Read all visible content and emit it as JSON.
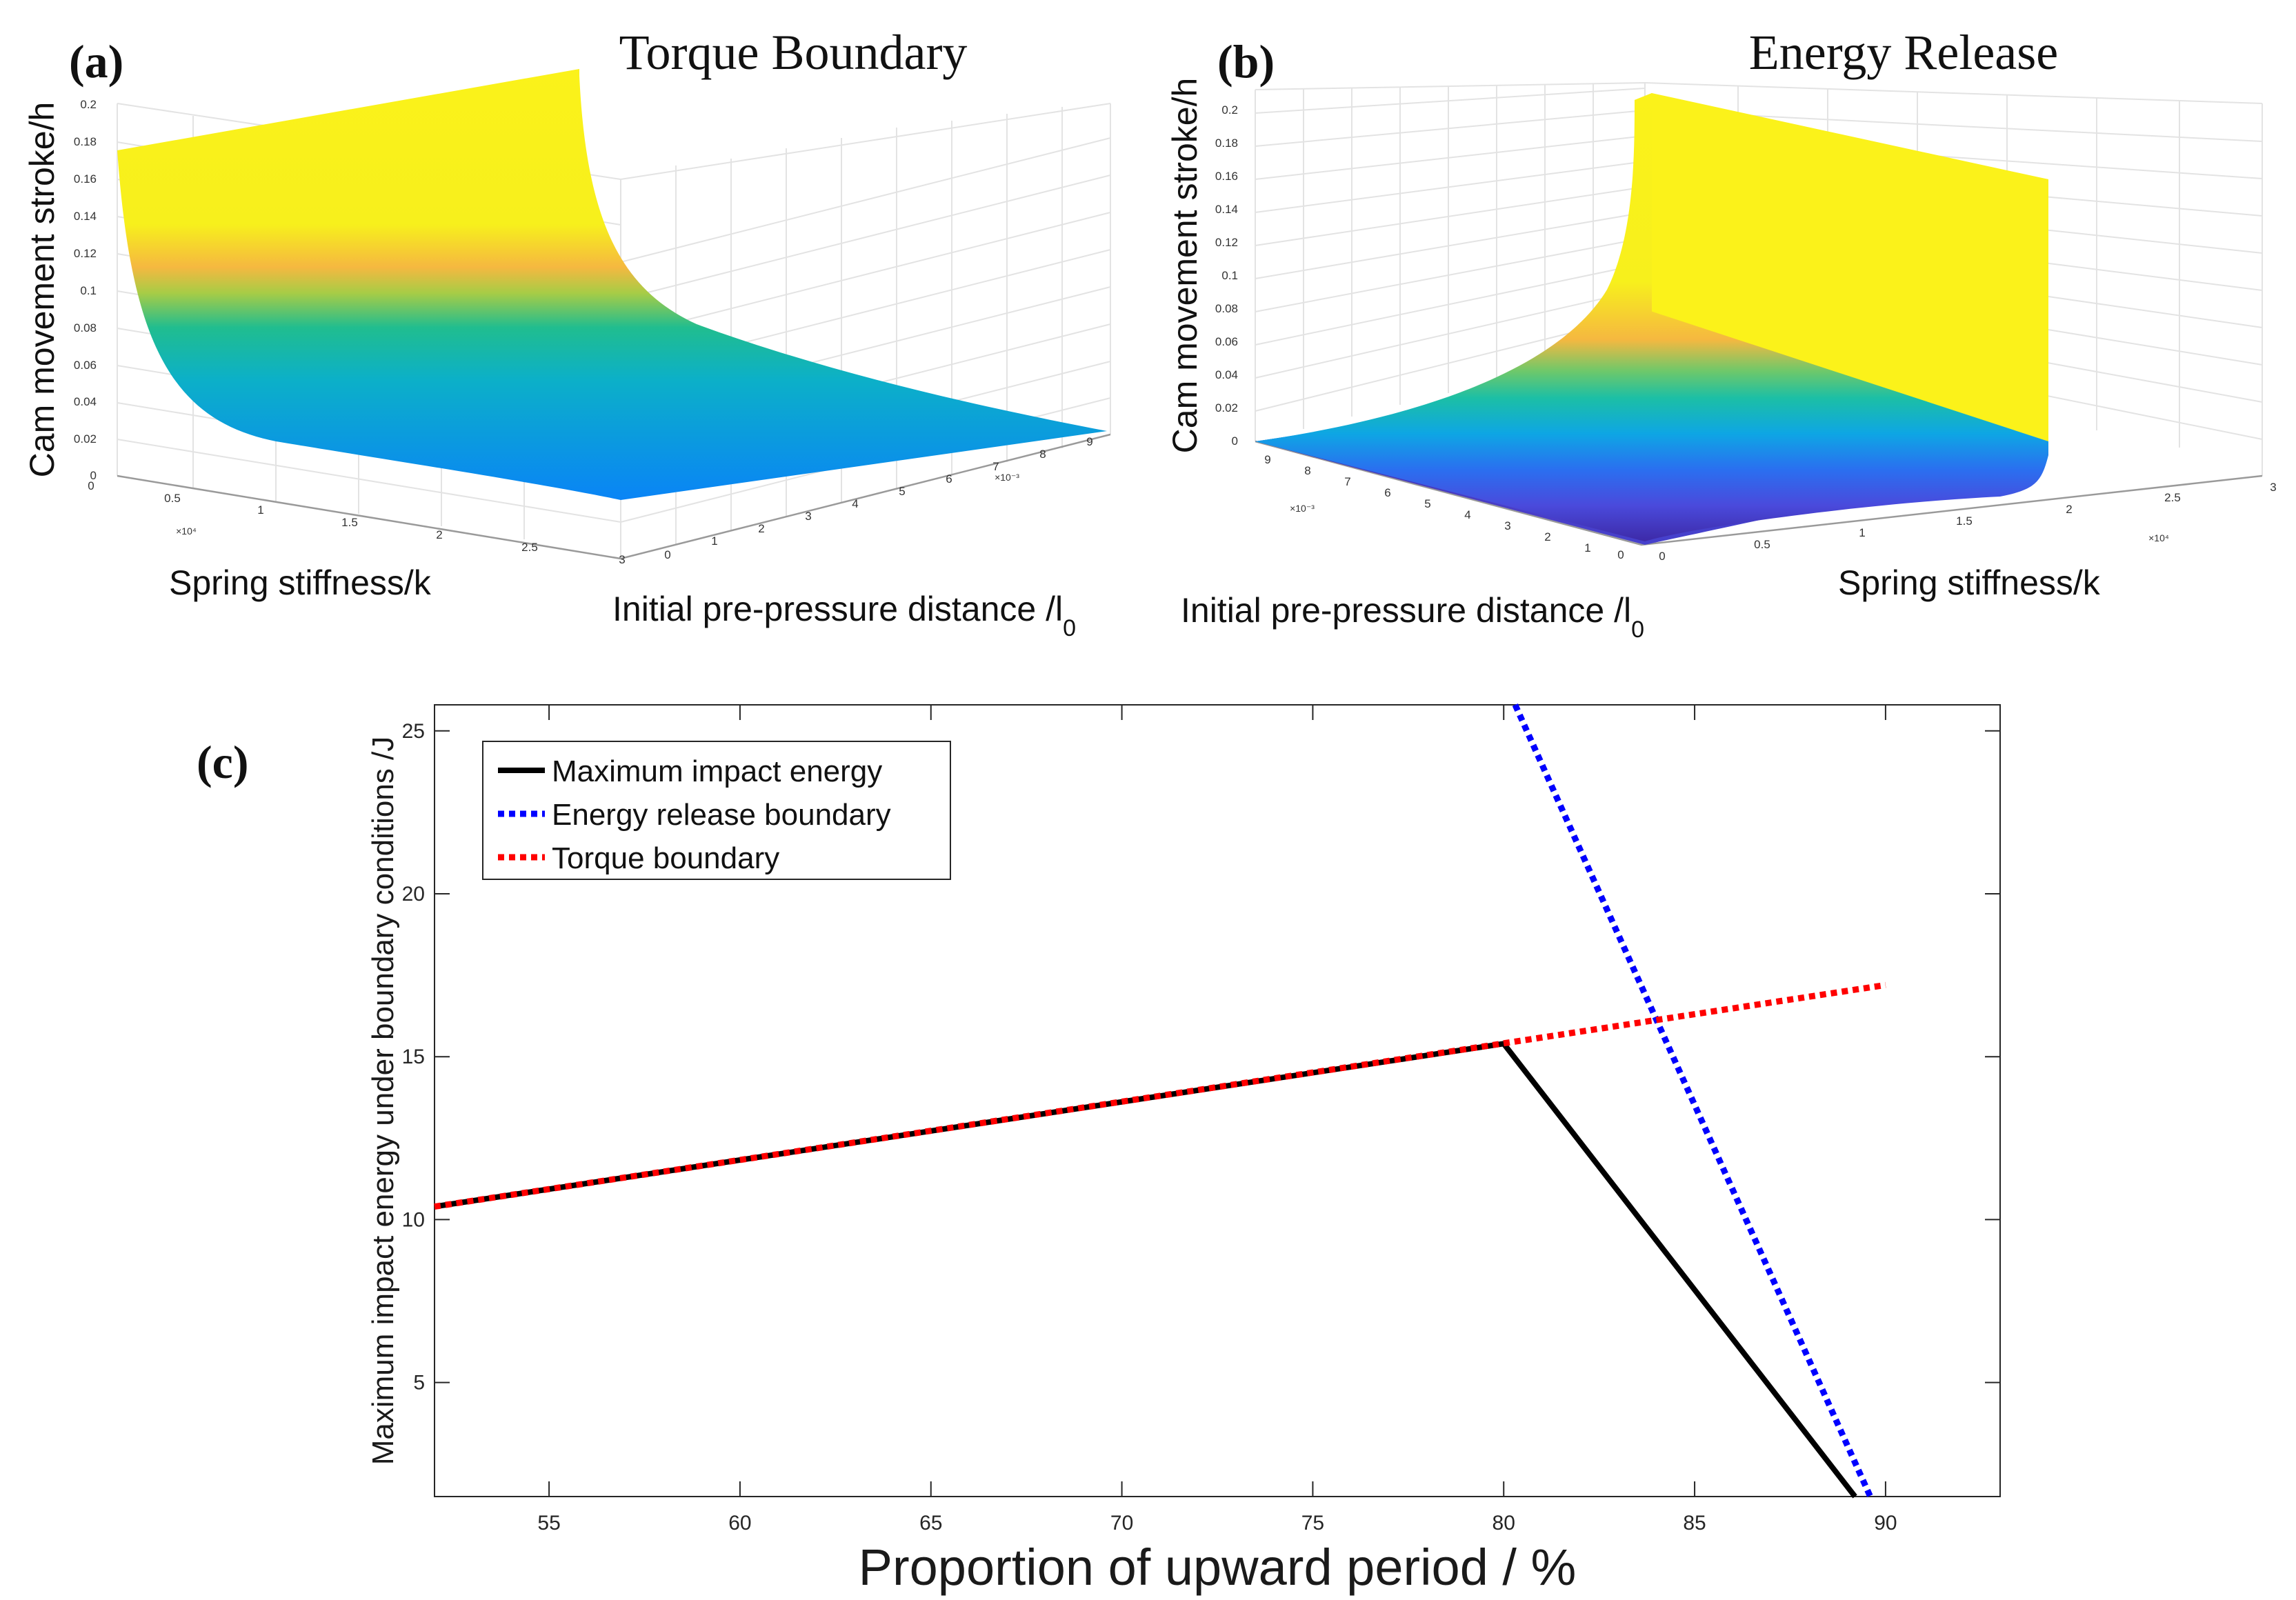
{
  "panels": {
    "a": {
      "letter": "a",
      "title": "Torque Boundary",
      "z_label": "Cam movement stroke/h",
      "x_label": "Spring stiffness/k",
      "y_label_main": "Initial pre-pressure distance /l",
      "y_label_sub": "0",
      "z_ticks": [
        "0",
        "0.02",
        "0.04",
        "0.06",
        "0.08",
        "0.1",
        "0.12",
        "0.14",
        "0.16",
        "0.18",
        "0.2"
      ],
      "x_ticks": [
        "0",
        "0.5",
        "1",
        "1.5",
        "2",
        "2.5",
        "3"
      ],
      "x_multiplier": "×10⁴",
      "y_ticks": [
        "0",
        "1",
        "2",
        "3",
        "4",
        "5",
        "6",
        "7",
        "8",
        "9"
      ],
      "y_multiplier": "×10⁻³"
    },
    "b": {
      "letter": "b",
      "title": "Energy Release",
      "z_label": "Cam movement stroke/h",
      "x_label": "Spring stiffness/k",
      "y_label_main": "Initial pre-pressure distance /l",
      "y_label_sub": "0",
      "z_ticks": [
        "0",
        "0.02",
        "0.04",
        "0.06",
        "0.08",
        "0.1",
        "0.12",
        "0.14",
        "0.16",
        "0.18",
        "0.2"
      ],
      "x_ticks": [
        "0",
        "0.5",
        "1",
        "1.5",
        "2",
        "2.5",
        "3"
      ],
      "x_multiplier": "×10⁴",
      "y_ticks": [
        "9",
        "8",
        "7",
        "6",
        "5",
        "4",
        "3",
        "2",
        "1",
        "0"
      ],
      "y_multiplier": "×10⁻³"
    },
    "c": {
      "letter": "c"
    }
  },
  "chart_data": [
    {
      "type": "surface",
      "panel": "a",
      "title": "Torque Boundary",
      "xlabel": "Spring stiffness/k",
      "ylabel": "Initial pre-pressure distance /l0",
      "zlabel": "Cam movement stroke/h",
      "xlim": [
        0,
        30000
      ],
      "ylim": [
        0,
        0.01
      ],
      "zlim": [
        0,
        0.2
      ],
      "colormap": "parula"
    },
    {
      "type": "surface",
      "panel": "b",
      "title": "Energy Release",
      "xlabel": "Spring stiffness/k",
      "ylabel": "Initial pre-pressure distance /l0",
      "zlabel": "Cam movement stroke/h",
      "xlim": [
        0,
        30000
      ],
      "ylim": [
        0,
        0.01
      ],
      "zlim": [
        0,
        0.2
      ],
      "colormap": "parula"
    },
    {
      "type": "line",
      "panel": "c",
      "title": "",
      "xlabel": "Proportion of upward period / %",
      "ylabel": "Maximum impact energy under boundary conditions /J",
      "xlim": [
        52,
        93
      ],
      "ylim": [
        1.5,
        25.8
      ],
      "xticks": [
        55,
        60,
        65,
        70,
        75,
        80,
        85,
        90
      ],
      "yticks": [
        5,
        10,
        15,
        20,
        25
      ],
      "legend_position": "top-left",
      "series": [
        {
          "name": "Maximum impact energy",
          "color": "#000000",
          "style": "solid",
          "x": [
            52,
            80,
            89.2
          ],
          "y": [
            10.4,
            15.4,
            1.5
          ]
        },
        {
          "name": "Energy release boundary",
          "color": "#0000ff",
          "style": "dotted",
          "x": [
            80.3,
            89.6
          ],
          "y": [
            25.8,
            1.5
          ]
        },
        {
          "name": "Torque boundary",
          "color": "#ff0000",
          "style": "dotted",
          "x": [
            52,
            90
          ],
          "y": [
            10.4,
            17.2
          ]
        }
      ]
    }
  ]
}
